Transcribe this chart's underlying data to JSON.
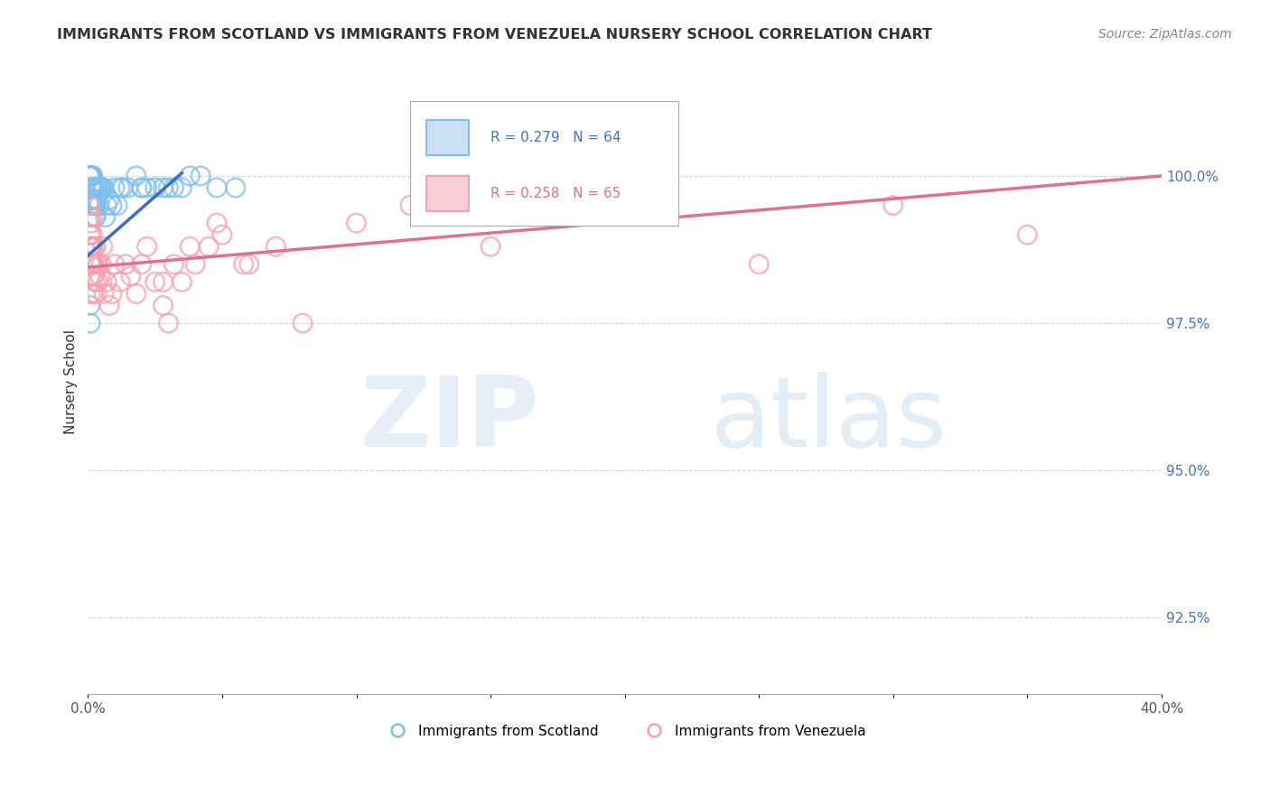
{
  "title": "IMMIGRANTS FROM SCOTLAND VS IMMIGRANTS FROM VENEZUELA NURSERY SCHOOL CORRELATION CHART",
  "source": "Source: ZipAtlas.com",
  "ylabel": "Nursery School",
  "ytick_values": [
    92.5,
    95.0,
    97.5,
    100.0
  ],
  "xlim": [
    0.0,
    40.0
  ],
  "ylim": [
    91.2,
    101.8
  ],
  "legend_blue_r": "R = 0.279",
  "legend_blue_n": "N = 64",
  "legend_pink_r": "R = 0.258",
  "legend_pink_n": "N = 65",
  "scotland_color": "#7fbfea",
  "venezuela_color": "#f4a0b0",
  "scotland_line_color": "#3a6fbf",
  "venezuela_line_color": "#e07090",
  "scotland_x": [
    0.05,
    0.07,
    0.08,
    0.09,
    0.1,
    0.1,
    0.1,
    0.1,
    0.1,
    0.1,
    0.12,
    0.13,
    0.14,
    0.15,
    0.15,
    0.16,
    0.17,
    0.18,
    0.18,
    0.19,
    0.2,
    0.2,
    0.21,
    0.22,
    0.23,
    0.25,
    0.25,
    0.27,
    0.28,
    0.3,
    0.3,
    0.32,
    0.35,
    0.37,
    0.4,
    0.42,
    0.45,
    0.5,
    0.55,
    0.6,
    0.65,
    0.7,
    0.8,
    0.9,
    1.0,
    1.1,
    1.3,
    1.5,
    1.8,
    2.0,
    2.2,
    2.5,
    2.8,
    3.0,
    3.2,
    3.5,
    3.8,
    4.2,
    4.8,
    5.5,
    0.08,
    0.09,
    1.2,
    2.0
  ],
  "scotland_y": [
    100.0,
    100.0,
    100.0,
    100.0,
    100.0,
    100.0,
    100.0,
    100.0,
    99.8,
    99.5,
    100.0,
    100.0,
    100.0,
    100.0,
    99.8,
    100.0,
    99.8,
    100.0,
    99.6,
    99.8,
    99.8,
    99.5,
    99.6,
    99.8,
    99.5,
    99.8,
    99.3,
    99.5,
    99.6,
    99.8,
    99.3,
    99.5,
    99.6,
    99.8,
    99.8,
    99.5,
    99.8,
    99.8,
    99.8,
    99.8,
    99.3,
    99.5,
    99.6,
    99.5,
    99.8,
    99.5,
    99.8,
    99.8,
    100.0,
    99.8,
    99.8,
    99.8,
    99.8,
    99.8,
    99.8,
    99.8,
    100.0,
    100.0,
    99.8,
    99.8,
    97.8,
    97.5,
    99.8,
    99.8
  ],
  "venezuela_x": [
    0.05,
    0.07,
    0.08,
    0.08,
    0.09,
    0.1,
    0.1,
    0.1,
    0.1,
    0.1,
    0.12,
    0.13,
    0.15,
    0.16,
    0.17,
    0.18,
    0.2,
    0.2,
    0.22,
    0.23,
    0.25,
    0.27,
    0.3,
    0.32,
    0.35,
    0.38,
    0.4,
    0.45,
    0.5,
    0.55,
    0.6,
    0.7,
    0.8,
    0.9,
    1.0,
    1.2,
    1.4,
    1.6,
    1.8,
    2.0,
    2.2,
    2.5,
    2.8,
    3.0,
    3.5,
    4.0,
    4.5,
    5.0,
    6.0,
    7.0,
    8.0,
    10.0,
    12.0,
    15.0,
    20.0,
    25.0,
    30.0,
    35.0,
    0.15,
    0.18,
    2.8,
    3.2,
    3.8,
    4.8,
    5.8
  ],
  "venezuela_y": [
    99.5,
    99.3,
    99.0,
    98.8,
    98.5,
    99.0,
    98.8,
    98.5,
    98.3,
    98.0,
    99.2,
    98.8,
    98.5,
    98.8,
    98.3,
    98.5,
    98.5,
    98.0,
    98.8,
    98.3,
    98.5,
    98.2,
    98.8,
    98.0,
    98.5,
    98.2,
    98.5,
    98.3,
    98.5,
    98.8,
    98.0,
    98.2,
    97.8,
    98.0,
    98.5,
    98.2,
    98.5,
    98.3,
    98.0,
    98.5,
    98.8,
    98.2,
    97.8,
    97.5,
    98.2,
    98.5,
    98.8,
    99.0,
    98.5,
    98.8,
    97.5,
    99.2,
    99.5,
    98.8,
    99.5,
    98.5,
    99.5,
    99.0,
    99.3,
    99.0,
    98.2,
    98.5,
    98.8,
    99.2,
    98.5
  ]
}
